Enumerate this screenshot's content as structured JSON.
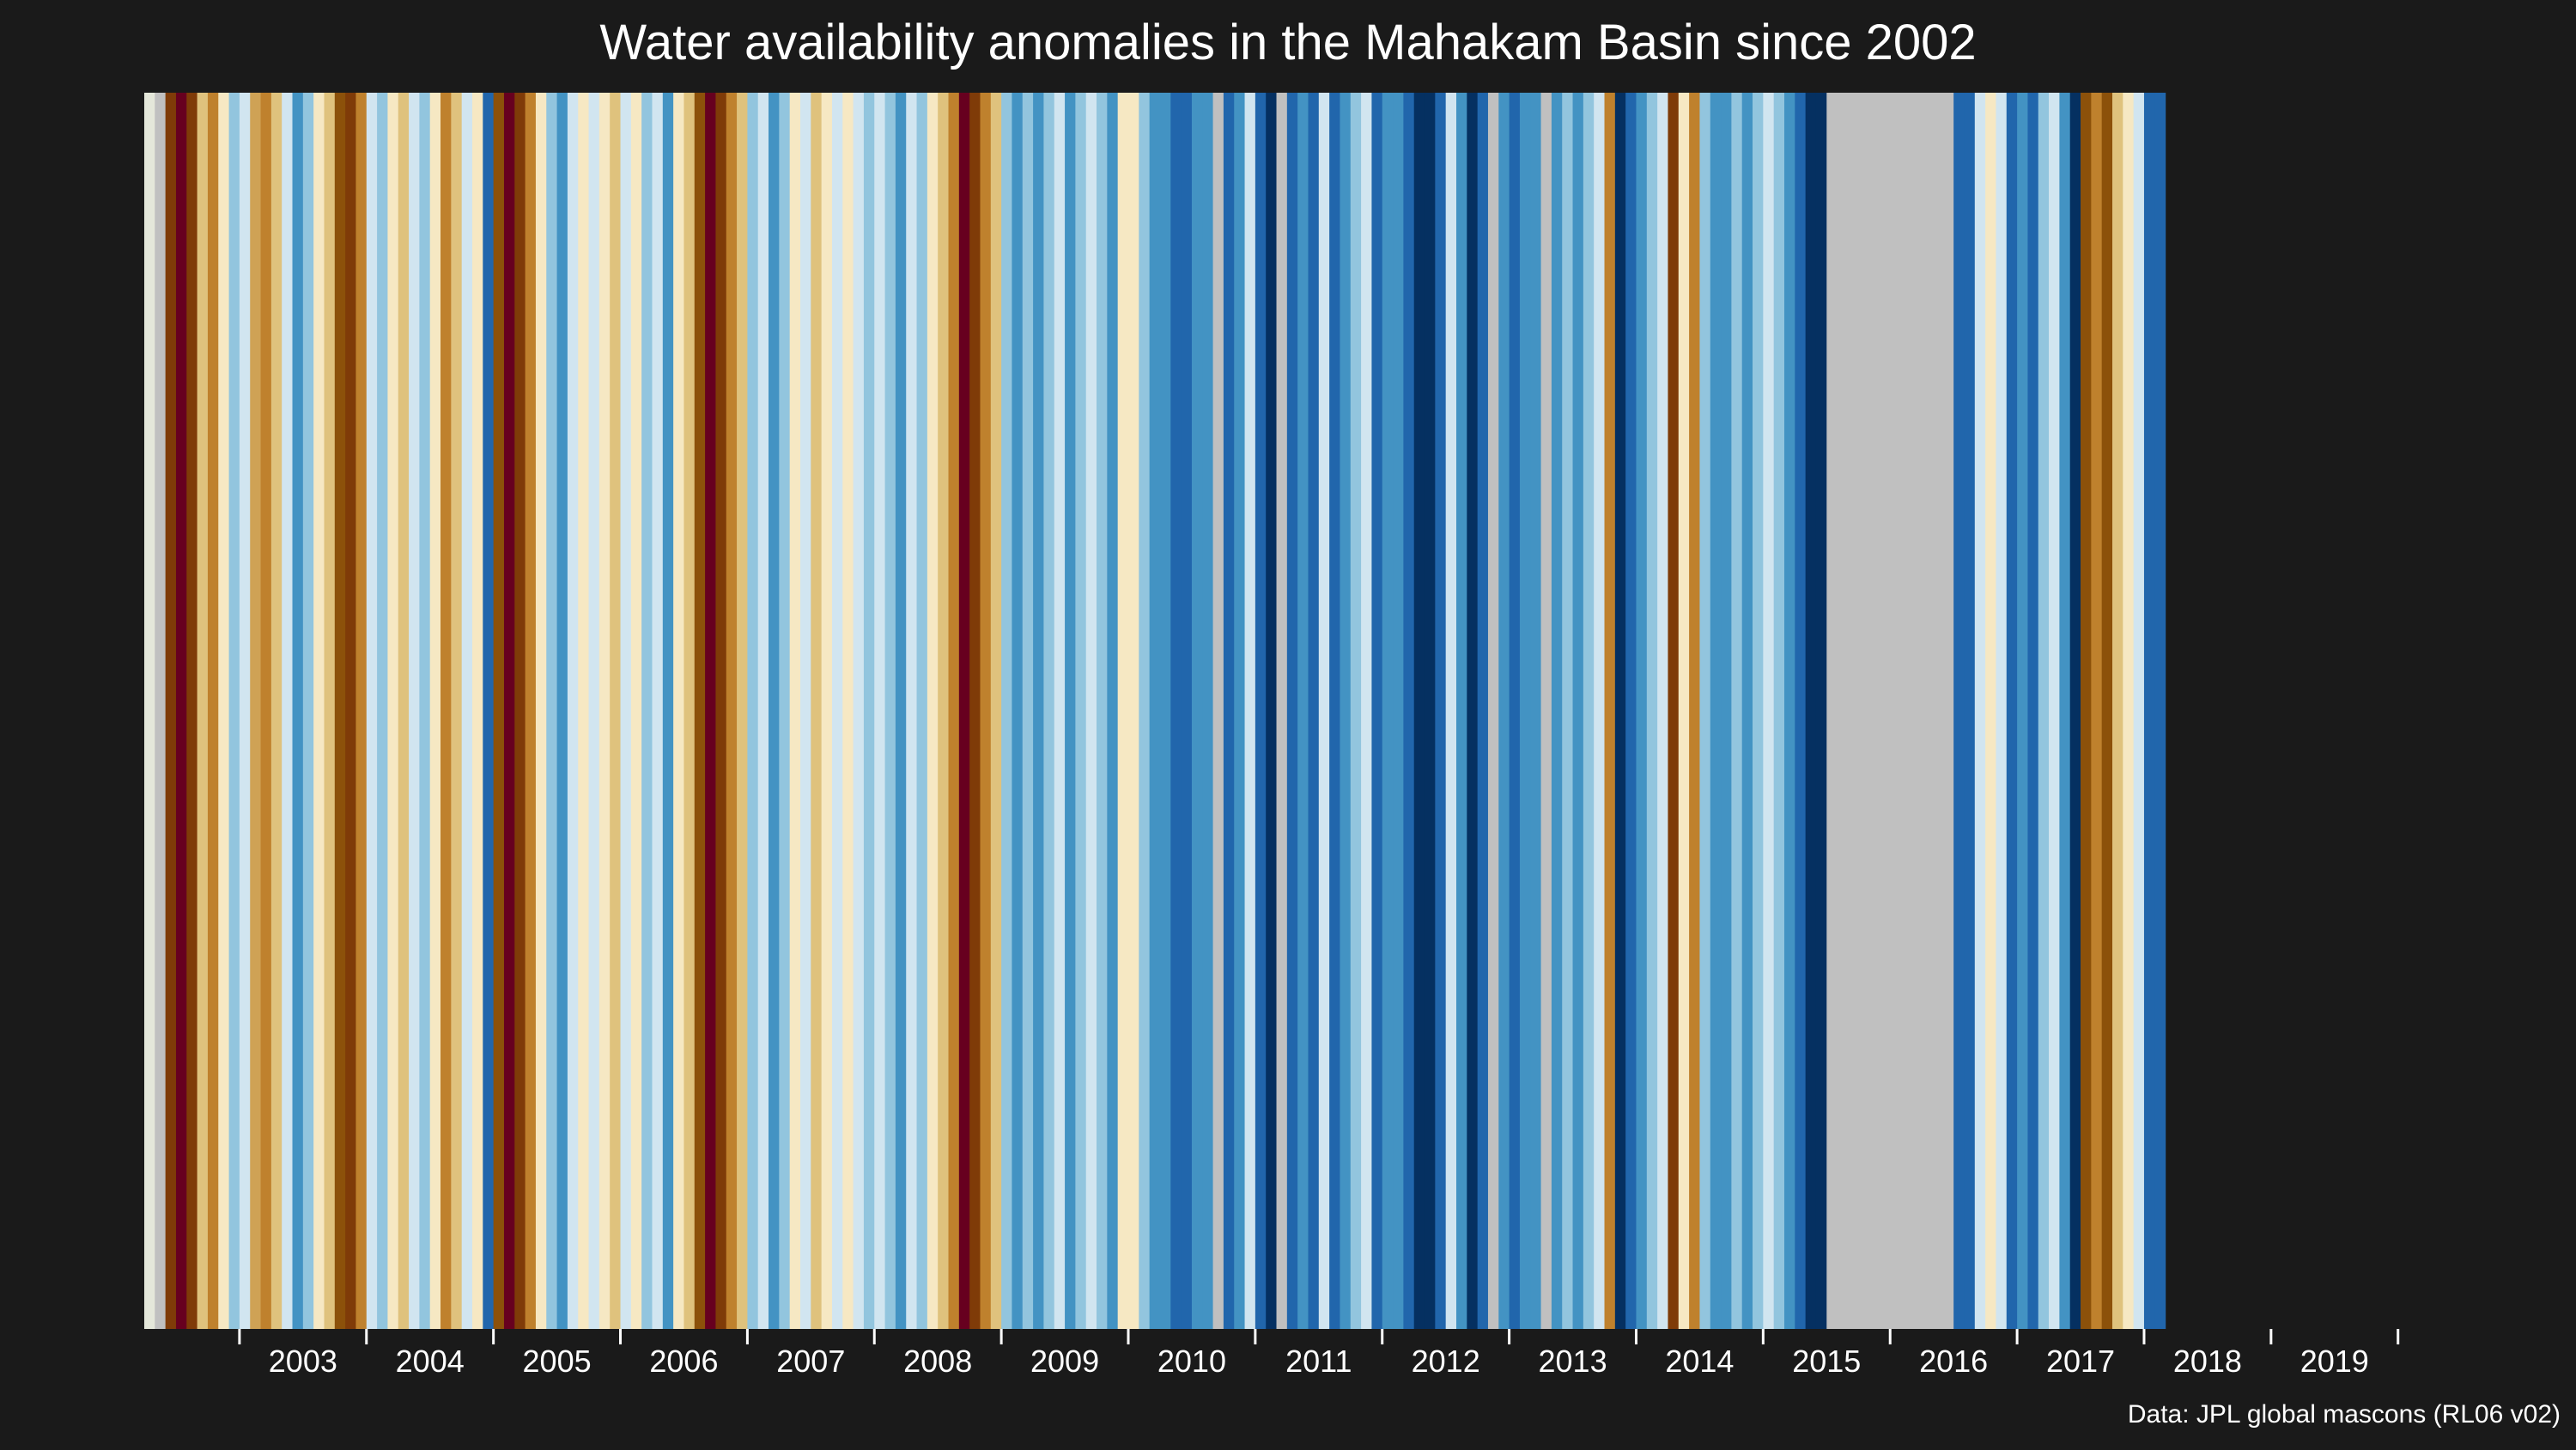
{
  "chart_data": {
    "type": "heatmap",
    "title": "Water availability anomalies in the Mahakam Basin since 2002",
    "xlabel": "",
    "ylabel": "",
    "source": "Data: JPL global mascons (RL06 v02)",
    "x_start": "2002-04",
    "x_end": "2020-05",
    "x_ticks": [
      "2003",
      "2004",
      "2005",
      "2006",
      "2007",
      "2008",
      "2009",
      "2010",
      "2011",
      "2012",
      "2013",
      "2014",
      "2015",
      "2016",
      "2017",
      "2018",
      "2019"
    ],
    "value_scale": {
      "levels": [
        -4,
        -3,
        -2,
        -1,
        0,
        1,
        2,
        3,
        4,
        5,
        6
      ],
      "colors": [
        "#67001f",
        "#7f3b08",
        "#8c510a",
        "#bf812d",
        "#dfc27d",
        "#f6e8c3",
        "#d1e5f0",
        "#92c5de",
        "#4393c3",
        "#2166ac",
        "#053061"
      ],
      "missing_color": "#c0c0c0"
    },
    "stripes": [
      {
        "month": "2002-04",
        "value": 1.5
      },
      {
        "month": "2002-05",
        "value": null
      },
      {
        "month": "2002-06",
        "value": -3
      },
      {
        "month": "2002-07",
        "value": -4
      },
      {
        "month": "2002-08",
        "value": -3
      },
      {
        "month": "2002-09",
        "value": 0
      },
      {
        "month": "2002-10",
        "value": -1
      },
      {
        "month": "2002-11",
        "value": 1
      },
      {
        "month": "2002-12",
        "value": 3
      },
      {
        "month": "2003-01",
        "value": 2
      },
      {
        "month": "2003-02",
        "value": -0.5
      },
      {
        "month": "2003-03",
        "value": -1
      },
      {
        "month": "2003-04",
        "value": 0
      },
      {
        "month": "2003-05",
        "value": 2
      },
      {
        "month": "2003-06",
        "value": 4
      },
      {
        "month": "2003-07",
        "value": 3
      },
      {
        "month": "2003-08",
        "value": 1
      },
      {
        "month": "2003-09",
        "value": 0
      },
      {
        "month": "2003-10",
        "value": -2
      },
      {
        "month": "2003-11",
        "value": -3
      },
      {
        "month": "2003-12",
        "value": -1
      },
      {
        "month": "2004-01",
        "value": 2
      },
      {
        "month": "2004-02",
        "value": 3
      },
      {
        "month": "2004-03",
        "value": 1
      },
      {
        "month": "2004-04",
        "value": 0
      },
      {
        "month": "2004-05",
        "value": 2
      },
      {
        "month": "2004-06",
        "value": 3
      },
      {
        "month": "2004-07",
        "value": 1
      },
      {
        "month": "2004-08",
        "value": -1
      },
      {
        "month": "2004-09",
        "value": 0
      },
      {
        "month": "2004-10",
        "value": 2
      },
      {
        "month": "2004-11",
        "value": 1
      },
      {
        "month": "2004-12",
        "value": 5
      },
      {
        "month": "2005-01",
        "value": -2
      },
      {
        "month": "2005-02",
        "value": -4
      },
      {
        "month": "2005-03",
        "value": -3
      },
      {
        "month": "2005-04",
        "value": -1
      },
      {
        "month": "2005-05",
        "value": 1
      },
      {
        "month": "2005-06",
        "value": 3
      },
      {
        "month": "2005-07",
        "value": 4
      },
      {
        "month": "2005-08",
        "value": 2
      },
      {
        "month": "2005-09",
        "value": 1
      },
      {
        "month": "2005-10",
        "value": 2
      },
      {
        "month": "2005-11",
        "value": 1
      },
      {
        "month": "2005-12",
        "value": 0
      },
      {
        "month": "2006-01",
        "value": 2
      },
      {
        "month": "2006-02",
        "value": 1
      },
      {
        "month": "2006-03",
        "value": 3
      },
      {
        "month": "2006-04",
        "value": 2
      },
      {
        "month": "2006-05",
        "value": 4
      },
      {
        "month": "2006-06",
        "value": 1
      },
      {
        "month": "2006-07",
        "value": 0
      },
      {
        "month": "2006-08",
        "value": -2
      },
      {
        "month": "2006-09",
        "value": -4
      },
      {
        "month": "2006-10",
        "value": -3
      },
      {
        "month": "2006-11",
        "value": -1
      },
      {
        "month": "2006-12",
        "value": 0
      },
      {
        "month": "2007-01",
        "value": 3
      },
      {
        "month": "2007-02",
        "value": 2
      },
      {
        "month": "2007-03",
        "value": 4
      },
      {
        "month": "2007-04",
        "value": 3
      },
      {
        "month": "2007-05",
        "value": 1
      },
      {
        "month": "2007-06",
        "value": 2
      },
      {
        "month": "2007-07",
        "value": 0
      },
      {
        "month": "2007-08",
        "value": 1
      },
      {
        "month": "2007-09",
        "value": 2
      },
      {
        "month": "2007-10",
        "value": 1
      },
      {
        "month": "2007-11",
        "value": 2
      },
      {
        "month": "2007-12",
        "value": 3
      },
      {
        "month": "2008-01",
        "value": 2
      },
      {
        "month": "2008-02",
        "value": 3
      },
      {
        "month": "2008-03",
        "value": 4
      },
      {
        "month": "2008-04",
        "value": 2
      },
      {
        "month": "2008-05",
        "value": 3
      },
      {
        "month": "2008-06",
        "value": 1
      },
      {
        "month": "2008-07",
        "value": 0
      },
      {
        "month": "2008-08",
        "value": -1
      },
      {
        "month": "2008-09",
        "value": -4
      },
      {
        "month": "2008-10",
        "value": -3
      },
      {
        "month": "2008-11",
        "value": -1
      },
      {
        "month": "2008-12",
        "value": 0
      },
      {
        "month": "2009-01",
        "value": 3
      },
      {
        "month": "2009-02",
        "value": 4
      },
      {
        "month": "2009-03",
        "value": 3
      },
      {
        "month": "2009-04",
        "value": 4
      },
      {
        "month": "2009-05",
        "value": 3
      },
      {
        "month": "2009-06",
        "value": 2
      },
      {
        "month": "2009-07",
        "value": 4
      },
      {
        "month": "2009-08",
        "value": 3
      },
      {
        "month": "2009-09",
        "value": 2
      },
      {
        "month": "2009-10",
        "value": 3
      },
      {
        "month": "2009-11",
        "value": 4
      },
      {
        "month": "2009-12",
        "value": 1
      },
      {
        "month": "2010-01",
        "value": 1
      },
      {
        "month": "2010-02",
        "value": 3
      },
      {
        "month": "2010-03",
        "value": 4
      },
      {
        "month": "2010-04",
        "value": 4
      },
      {
        "month": "2010-05",
        "value": 5
      },
      {
        "month": "2010-06",
        "value": 5
      },
      {
        "month": "2010-07",
        "value": 4
      },
      {
        "month": "2010-08",
        "value": 4
      },
      {
        "month": "2010-09",
        "value": null
      },
      {
        "month": "2010-10",
        "value": 5
      },
      {
        "month": "2010-11",
        "value": 4
      },
      {
        "month": "2010-12",
        "value": 2
      },
      {
        "month": "2011-01",
        "value": 5
      },
      {
        "month": "2011-02",
        "value": 6
      },
      {
        "month": "2011-03",
        "value": null
      },
      {
        "month": "2011-04",
        "value": 5
      },
      {
        "month": "2011-05",
        "value": 4
      },
      {
        "month": "2011-06",
        "value": 5
      },
      {
        "month": "2011-07",
        "value": 2
      },
      {
        "month": "2011-08",
        "value": 5
      },
      {
        "month": "2011-09",
        "value": 4
      },
      {
        "month": "2011-10",
        "value": 3
      },
      {
        "month": "2011-11",
        "value": 2
      },
      {
        "month": "2011-12",
        "value": 5
      },
      {
        "month": "2012-01",
        "value": 4
      },
      {
        "month": "2012-02",
        "value": 4
      },
      {
        "month": "2012-03",
        "value": 5
      },
      {
        "month": "2012-04",
        "value": 6
      },
      {
        "month": "2012-05",
        "value": 6
      },
      {
        "month": "2012-06",
        "value": 5
      },
      {
        "month": "2012-07",
        "value": 2
      },
      {
        "month": "2012-08",
        "value": 4
      },
      {
        "month": "2012-09",
        "value": 6
      },
      {
        "month": "2012-10",
        "value": 5
      },
      {
        "month": "2012-11",
        "value": null
      },
      {
        "month": "2012-12",
        "value": 4
      },
      {
        "month": "2013-01",
        "value": 5
      },
      {
        "month": "2013-02",
        "value": 4
      },
      {
        "month": "2013-03",
        "value": 4
      },
      {
        "month": "2013-04",
        "value": null
      },
      {
        "month": "2013-05",
        "value": 4
      },
      {
        "month": "2013-06",
        "value": 3
      },
      {
        "month": "2013-07",
        "value": 4
      },
      {
        "month": "2013-08",
        "value": 3
      },
      {
        "month": "2013-09",
        "value": 2
      },
      {
        "month": "2013-10",
        "value": -1
      },
      {
        "month": "2013-11",
        "value": 6
      },
      {
        "month": "2013-12",
        "value": 5
      },
      {
        "month": "2014-01",
        "value": 4
      },
      {
        "month": "2014-02",
        "value": 3
      },
      {
        "month": "2014-03",
        "value": 2
      },
      {
        "month": "2014-04",
        "value": -3
      },
      {
        "month": "2014-05",
        "value": 1
      },
      {
        "month": "2014-06",
        "value": -1
      },
      {
        "month": "2014-07",
        "value": 3
      },
      {
        "month": "2014-08",
        "value": 4
      },
      {
        "month": "2014-09",
        "value": 4
      },
      {
        "month": "2014-10",
        "value": 3
      },
      {
        "month": "2014-11",
        "value": 4
      },
      {
        "month": "2014-12",
        "value": 3
      },
      {
        "month": "2015-01",
        "value": 2
      },
      {
        "month": "2015-02",
        "value": 3
      },
      {
        "month": "2015-03",
        "value": 4
      },
      {
        "month": "2015-04",
        "value": 5
      },
      {
        "month": "2015-05",
        "value": 6
      },
      {
        "month": "2015-06",
        "value": 6
      },
      {
        "month": "2015-07",
        "value": null
      },
      {
        "month": "2015-08",
        "value": null
      },
      {
        "month": "2015-09",
        "value": null
      },
      {
        "month": "2015-10",
        "value": null
      },
      {
        "month": "2015-11",
        "value": null
      },
      {
        "month": "2015-12",
        "value": null
      },
      {
        "month": "2016-01",
        "value": null
      },
      {
        "month": "2016-02",
        "value": null
      },
      {
        "month": "2016-03",
        "value": null
      },
      {
        "month": "2016-04",
        "value": null
      },
      {
        "month": "2016-05",
        "value": null
      },
      {
        "month": "2016-06",
        "value": null
      },
      {
        "month": "2016-07",
        "value": 5
      },
      {
        "month": "2016-08",
        "value": 5
      },
      {
        "month": "2016-09",
        "value": 2
      },
      {
        "month": "2016-10",
        "value": 1
      },
      {
        "month": "2016-11",
        "value": 2
      },
      {
        "month": "2016-12",
        "value": 5
      },
      {
        "month": "2017-01",
        "value": 4
      },
      {
        "month": "2017-02",
        "value": 5
      },
      {
        "month": "2017-03",
        "value": 3
      },
      {
        "month": "2017-04",
        "value": 2
      },
      {
        "month": "2017-05",
        "value": 4
      },
      {
        "month": "2017-06",
        "value": 6
      },
      {
        "month": "2017-07",
        "value": -2
      },
      {
        "month": "2017-08",
        "value": -1
      },
      {
        "month": "2017-09",
        "value": -2
      },
      {
        "month": "2017-10",
        "value": 0
      },
      {
        "month": "2017-11",
        "value": 1
      },
      {
        "month": "2017-12",
        "value": 2
      },
      {
        "month": "2018-01",
        "value": 5
      },
      {
        "month": "2018-02",
        "value": 5
      }
    ]
  }
}
